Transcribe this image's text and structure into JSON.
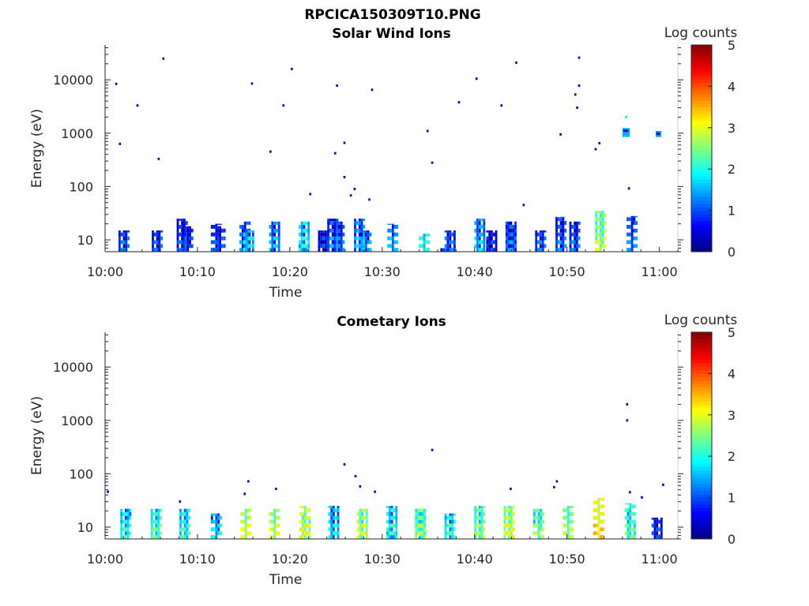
{
  "figure": {
    "title": "RPCICA150309T10.PNG"
  },
  "chart_data": [
    {
      "type": "heatmap",
      "title": "Solar Wind Ions",
      "xlabel": "Time",
      "ylabel": "Energy (eV)",
      "x_tick_labels": [
        "10:00",
        "10:10",
        "10:20",
        "10:30",
        "10:40",
        "10:50",
        "11:00"
      ],
      "x_range_min": [
        0,
        62
      ],
      "y_scale": "log",
      "y_range_ev": [
        6,
        45000
      ],
      "y_tick_values": [
        10,
        100,
        1000,
        10000
      ],
      "y_tick_labels": [
        "10",
        "100",
        "1000",
        "10000"
      ],
      "colorbar": {
        "label": "Log counts",
        "ticks": [
          "0",
          "1",
          "2",
          "3",
          "4",
          "5"
        ],
        "range": [
          0,
          5
        ],
        "colormap": "jet"
      },
      "columns": [
        {
          "t": 2.0,
          "emin": 6,
          "emax": 15,
          "v": 0.6
        },
        {
          "t": 5.6,
          "emin": 6,
          "emax": 15,
          "v": 0.5
        },
        {
          "t": 8.3,
          "emin": 6,
          "emax": 25,
          "v": 0.5
        },
        {
          "t": 8.9,
          "emin": 6,
          "emax": 18,
          "v": 0.3
        },
        {
          "t": 12.0,
          "emin": 9,
          "emax": 20,
          "v": 0.3
        },
        {
          "t": 12.4,
          "emin": 6,
          "emax": 18,
          "v": 0.4
        },
        {
          "t": 15.1,
          "emin": 6,
          "emax": 22,
          "v": 0.7
        },
        {
          "t": 15.5,
          "emin": 8,
          "emax": 15,
          "v": 1.3
        },
        {
          "t": 18.3,
          "emin": 7,
          "emax": 22,
          "v": 1.0
        },
        {
          "t": 21.5,
          "emin": 6,
          "emax": 22,
          "v": 1.5
        },
        {
          "t": 23.6,
          "emin": 11,
          "emax": 15,
          "v": 0.3
        },
        {
          "t": 24.6,
          "emin": 6,
          "emax": 25,
          "v": 0.8
        },
        {
          "t": 25.3,
          "emin": 8,
          "emax": 22,
          "v": 0.7
        },
        {
          "t": 27.5,
          "emin": 6,
          "emax": 25,
          "v": 1.0
        },
        {
          "t": 28.2,
          "emin": 6,
          "emax": 15,
          "v": 0.8
        },
        {
          "t": 31.1,
          "emin": 7,
          "emax": 20,
          "v": 0.9
        },
        {
          "t": 34.5,
          "emin": 6,
          "emax": 13,
          "v": 1.4
        },
        {
          "t": 36.6,
          "emin": 6,
          "emax": 7,
          "v": 0.4
        },
        {
          "t": 37.3,
          "emin": 6,
          "emax": 15,
          "v": 0.6
        },
        {
          "t": 40.5,
          "emin": 8,
          "emax": 25,
          "v": 1.1
        },
        {
          "t": 41.8,
          "emin": 11,
          "emax": 15,
          "v": 0.3
        },
        {
          "t": 43.9,
          "emin": 6,
          "emax": 22,
          "v": 0.8
        },
        {
          "t": 47.1,
          "emin": 6,
          "emax": 15,
          "v": 0.6
        },
        {
          "t": 49.3,
          "emin": 8,
          "emax": 27,
          "v": 0.7
        },
        {
          "t": 50.8,
          "emin": 9,
          "emax": 22,
          "v": 0.6
        },
        {
          "t": 53.6,
          "emin": 10,
          "emax": 35,
          "v": 2.3
        },
        {
          "t": 57.0,
          "emin": 6,
          "emax": 28,
          "v": 0.7
        }
      ],
      "points": [
        {
          "t": 1.2,
          "e": 8400,
          "v": 0.3
        },
        {
          "t": 6.3,
          "e": 25000,
          "v": 0.3
        },
        {
          "t": 3.5,
          "e": 3300,
          "v": 0.3
        },
        {
          "t": 1.6,
          "e": 630,
          "v": 0.3
        },
        {
          "t": 5.8,
          "e": 330,
          "v": 0.3
        },
        {
          "t": 15.9,
          "e": 8500,
          "v": 0.3
        },
        {
          "t": 20.2,
          "e": 16000,
          "v": 0.3
        },
        {
          "t": 19.3,
          "e": 3300,
          "v": 0.3
        },
        {
          "t": 17.9,
          "e": 450,
          "v": 0.3
        },
        {
          "t": 22.2,
          "e": 72,
          "v": 0.3
        },
        {
          "t": 25.1,
          "e": 7800,
          "v": 0.3
        },
        {
          "t": 28.9,
          "e": 6500,
          "v": 0.3
        },
        {
          "t": 25.9,
          "e": 660,
          "v": 0.3
        },
        {
          "t": 24.9,
          "e": 420,
          "v": 0.3
        },
        {
          "t": 25.9,
          "e": 150,
          "v": 0.3
        },
        {
          "t": 27.0,
          "e": 90,
          "v": 0.3
        },
        {
          "t": 26.6,
          "e": 68,
          "v": 0.3
        },
        {
          "t": 28.6,
          "e": 57,
          "v": 0.3
        },
        {
          "t": 34.9,
          "e": 1100,
          "v": 0.3
        },
        {
          "t": 35.4,
          "e": 280,
          "v": 0.3
        },
        {
          "t": 38.3,
          "e": 3800,
          "v": 0.3
        },
        {
          "t": 40.2,
          "e": 10500,
          "v": 0.3
        },
        {
          "t": 42.9,
          "e": 3300,
          "v": 0.3
        },
        {
          "t": 44.5,
          "e": 21000,
          "v": 0.3
        },
        {
          "t": 45.3,
          "e": 45,
          "v": 0.3
        },
        {
          "t": 49.3,
          "e": 950,
          "v": 0.3
        },
        {
          "t": 51.3,
          "e": 26000,
          "v": 0.3
        },
        {
          "t": 51.3,
          "e": 7800,
          "v": 0.3
        },
        {
          "t": 50.9,
          "e": 5300,
          "v": 0.3
        },
        {
          "t": 51.1,
          "e": 3000,
          "v": 0.3
        },
        {
          "t": 53.1,
          "e": 500,
          "v": 0.3
        },
        {
          "t": 53.5,
          "e": 650,
          "v": 0.3
        },
        {
          "t": 56.4,
          "e": 2000,
          "v": 1.8
        },
        {
          "t": 56.7,
          "e": 92,
          "v": 0.3
        }
      ],
      "patches": [
        {
          "t0": 56.0,
          "t1": 56.8,
          "emin": 850,
          "emax": 1250,
          "v": 1.5
        },
        {
          "t0": 59.6,
          "t1": 60.2,
          "emin": 850,
          "emax": 1100,
          "v": 1.4
        }
      ]
    },
    {
      "type": "heatmap",
      "title": "Cometary Ions",
      "xlabel": "Time",
      "ylabel": "Energy (eV)",
      "x_tick_labels": [
        "10:00",
        "10:10",
        "10:20",
        "10:30",
        "10:40",
        "10:50",
        "11:00"
      ],
      "x_range_min": [
        0,
        62
      ],
      "y_scale": "log",
      "y_range_ev": [
        6,
        45000
      ],
      "y_tick_values": [
        10,
        100,
        1000,
        10000
      ],
      "y_tick_labels": [
        "10",
        "100",
        "1000",
        "10000"
      ],
      "colorbar": {
        "label": "Log counts",
        "ticks": [
          "0",
          "1",
          "2",
          "3",
          "4",
          "5"
        ],
        "range": [
          0,
          5
        ],
        "colormap": "jet"
      },
      "columns": [
        {
          "t": 2.2,
          "emin": 6,
          "emax": 22,
          "v": 1.6
        },
        {
          "t": 5.5,
          "emin": 6,
          "emax": 22,
          "v": 1.8
        },
        {
          "t": 8.6,
          "emin": 6,
          "emax": 22,
          "v": 1.6
        },
        {
          "t": 12.0,
          "emin": 6,
          "emax": 18,
          "v": 1.2
        },
        {
          "t": 15.2,
          "emin": 6,
          "emax": 22,
          "v": 2.4
        },
        {
          "t": 18.3,
          "emin": 6,
          "emax": 22,
          "v": 2.3
        },
        {
          "t": 21.6,
          "emin": 6,
          "emax": 25,
          "v": 2.5
        },
        {
          "t": 24.7,
          "emin": 6,
          "emax": 25,
          "v": 1.3
        },
        {
          "t": 27.8,
          "emin": 6,
          "emax": 22,
          "v": 2.4
        },
        {
          "t": 31.0,
          "emin": 6,
          "emax": 25,
          "v": 1.6
        },
        {
          "t": 34.1,
          "emin": 6,
          "emax": 22,
          "v": 2.2
        },
        {
          "t": 37.3,
          "emin": 6,
          "emax": 18,
          "v": 1.6
        },
        {
          "t": 40.5,
          "emin": 6,
          "emax": 25,
          "v": 2.1
        },
        {
          "t": 43.7,
          "emin": 6,
          "emax": 25,
          "v": 2.5
        },
        {
          "t": 46.9,
          "emin": 6,
          "emax": 22,
          "v": 2.0
        },
        {
          "t": 50.1,
          "emin": 6,
          "emax": 25,
          "v": 2.1
        },
        {
          "t": 53.4,
          "emin": 6,
          "emax": 35,
          "v": 2.8
        },
        {
          "t": 56.8,
          "emin": 6,
          "emax": 28,
          "v": 1.8
        },
        {
          "t": 59.7,
          "emin": 9,
          "emax": 15,
          "v": 0.4
        }
      ],
      "points": [
        {
          "t": 0.3,
          "e": 46,
          "v": 0.3
        },
        {
          "t": 8.1,
          "e": 30,
          "v": 0.3
        },
        {
          "t": 15.1,
          "e": 42,
          "v": 0.3
        },
        {
          "t": 15.5,
          "e": 72,
          "v": 0.3
        },
        {
          "t": 18.5,
          "e": 52,
          "v": 0.3
        },
        {
          "t": 25.9,
          "e": 150,
          "v": 0.3
        },
        {
          "t": 27.1,
          "e": 90,
          "v": 0.3
        },
        {
          "t": 27.6,
          "e": 58,
          "v": 0.3
        },
        {
          "t": 29.2,
          "e": 46,
          "v": 0.3
        },
        {
          "t": 35.4,
          "e": 280,
          "v": 0.3
        },
        {
          "t": 43.9,
          "e": 52,
          "v": 0.3
        },
        {
          "t": 48.9,
          "e": 72,
          "v": 0.3
        },
        {
          "t": 48.6,
          "e": 56,
          "v": 0.3
        },
        {
          "t": 56.5,
          "e": 2000,
          "v": 0.3
        },
        {
          "t": 56.5,
          "e": 1000,
          "v": 0.3
        },
        {
          "t": 56.8,
          "e": 45,
          "v": 0.3
        },
        {
          "t": 58.1,
          "e": 36,
          "v": 0.3
        },
        {
          "t": 60.4,
          "e": 62,
          "v": 0.3
        }
      ],
      "patches": []
    }
  ]
}
